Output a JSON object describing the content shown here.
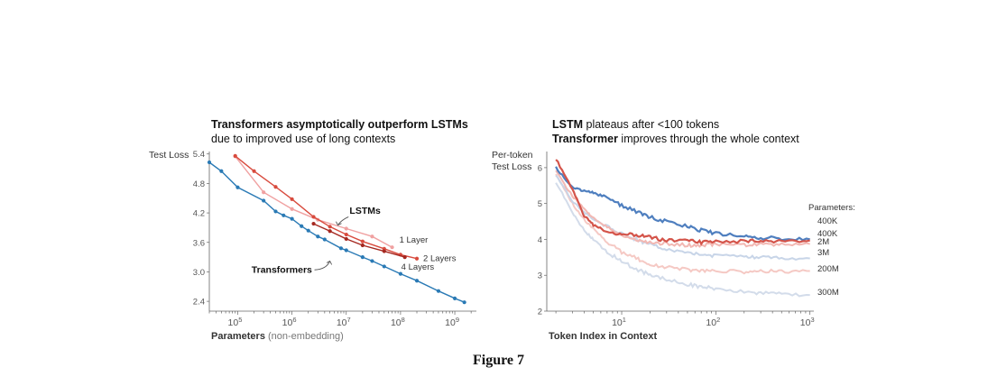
{
  "figure_caption": "Figure 7",
  "chart_data": [
    {
      "type": "line",
      "title_line1": "Transformers asymptotically outperform LSTMs",
      "title_line2": "due to improved use of long contexts",
      "ylabel": "Test Loss",
      "xlabel_bold": "Parameters",
      "xlabel_light": "(non-embedding)",
      "x_scale": "log",
      "xlim": [
        30000,
        2500000000
      ],
      "ylim": [
        2.2,
        5.45
      ],
      "yticks": [
        2.4,
        3.0,
        3.6,
        4.2,
        4.8,
        5.4
      ],
      "ytick_labels": [
        "2.4",
        "3.0",
        "3.6",
        "4.2",
        "4.8",
        "5.4"
      ],
      "xticks": [
        100000,
        1000000,
        10000000,
        100000000,
        1000000000
      ],
      "xtick_labels": [
        "5",
        "6",
        "7",
        "8",
        "9"
      ],
      "xtick_base": "10",
      "annotations": {
        "lstms": "LSTMs",
        "transformers": "Transformers"
      },
      "series": [
        {
          "name": "Transformers",
          "color": "#2a7ab5",
          "label_pos": "none",
          "x": [
            30000,
            50000,
            100000,
            300000,
            500000,
            700000,
            1000000,
            1500000,
            2000000,
            3000000,
            4000000,
            8000000,
            10000000,
            20000000,
            30000000,
            50000000,
            100000000,
            200000000,
            500000000,
            1000000000,
            1500000000
          ],
          "y": [
            5.23,
            5.05,
            4.72,
            4.45,
            4.23,
            4.15,
            4.08,
            3.93,
            3.84,
            3.72,
            3.66,
            3.48,
            3.44,
            3.3,
            3.22,
            3.11,
            2.96,
            2.82,
            2.61,
            2.46,
            2.38
          ]
        },
        {
          "name": "1 Layer",
          "color": "#f0a1a1",
          "label_pos": "end",
          "x": [
            90000,
            300000,
            1000000,
            3000000,
            10000000,
            30000000,
            70000000
          ],
          "y": [
            5.35,
            4.62,
            4.28,
            4.06,
            3.88,
            3.72,
            3.5
          ]
        },
        {
          "name": "2 Layers",
          "color": "#d84b3e",
          "label_pos": "end",
          "x": [
            90000,
            200000,
            500000,
            1000000,
            2500000,
            5000000,
            10000000,
            20000000,
            50000000,
            100000000,
            200000000
          ],
          "y": [
            5.36,
            5.05,
            4.73,
            4.48,
            4.12,
            3.92,
            3.76,
            3.62,
            3.47,
            3.35,
            3.27
          ]
        },
        {
          "name": "4 Layers",
          "color": "#a52820",
          "label_pos": "end",
          "x": [
            2500000,
            5000000,
            10000000,
            20000000,
            50000000,
            120000000
          ],
          "y": [
            3.98,
            3.83,
            3.67,
            3.54,
            3.42,
            3.3
          ]
        }
      ]
    },
    {
      "type": "line",
      "title_line1_bold": "LSTM",
      "title_line1_rest": " plateaus after <100 tokens",
      "title_line2_bold": "Transformer",
      "title_line2_rest": " improves through the whole context",
      "ylabel_line1": "Per-token",
      "ylabel_line2": "Test Loss",
      "xlabel": "Token Index in Context",
      "x_scale": "log",
      "xlim": [
        1.6,
        1100
      ],
      "ylim": [
        2,
        6.45
      ],
      "yticks": [
        2,
        3,
        4,
        5,
        6
      ],
      "ytick_labels": [
        "2",
        "3",
        "4",
        "5",
        "6"
      ],
      "xticks": [
        10,
        100,
        1000
      ],
      "xtick_labels": [
        "1",
        "2",
        "3"
      ],
      "xtick_base": "10",
      "legend_title": "Parameters:",
      "series": [
        {
          "name": "400K",
          "kind": "LSTM",
          "color": "#d4544a",
          "opacity": 1.0,
          "label_loss": 4.97,
          "x": [
            2,
            3,
            4,
            5,
            7,
            10,
            15,
            20,
            30,
            50,
            70,
            100,
            200,
            300,
            500,
            1000
          ],
          "y": [
            6.25,
            5.4,
            4.65,
            4.4,
            4.22,
            4.15,
            4.12,
            4.05,
            3.98,
            3.96,
            3.92,
            3.95,
            3.94,
            3.96,
            3.95,
            3.97
          ]
        },
        {
          "name": "400K",
          "kind": "Transformer",
          "color": "#4f7fbf",
          "opacity": 1.0,
          "label_loss": 5.1,
          "x": [
            2,
            3,
            4,
            5,
            7,
            10,
            15,
            20,
            30,
            50,
            70,
            100,
            200,
            300,
            500,
            1000
          ],
          "y": [
            6.0,
            5.45,
            5.35,
            5.3,
            5.15,
            4.95,
            4.75,
            4.62,
            4.5,
            4.35,
            4.25,
            4.16,
            4.1,
            4.05,
            4.02,
            4.0
          ]
        },
        {
          "name": "2M",
          "kind": "LSTM",
          "color": "#f2b8b3",
          "opacity": 1.0,
          "label_loss": 5.27,
          "x": [
            2,
            3,
            4,
            5,
            7,
            10,
            15,
            20,
            30,
            50,
            70,
            100,
            200,
            300,
            500,
            1000
          ],
          "y": [
            5.9,
            5.2,
            4.85,
            4.6,
            4.32,
            4.1,
            3.98,
            3.92,
            3.88,
            3.84,
            3.84,
            3.86,
            3.85,
            3.86,
            3.85,
            3.87
          ]
        },
        {
          "name": "3M",
          "kind": "Transformer",
          "color": "#c8d5e8",
          "opacity": 1.0,
          "label_loss": 5.5,
          "x": [
            2,
            3,
            4,
            5,
            7,
            10,
            15,
            20,
            30,
            50,
            70,
            100,
            200,
            300,
            500,
            1000
          ],
          "y": [
            5.8,
            5.05,
            4.75,
            4.55,
            4.35,
            4.15,
            3.98,
            3.85,
            3.72,
            3.62,
            3.58,
            3.55,
            3.52,
            3.5,
            3.48,
            3.47
          ]
        },
        {
          "name": "200M",
          "kind": "LSTM",
          "color": "#f5c9c4",
          "opacity": 1.0,
          "label_loss": 6.07,
          "x": [
            2,
            3,
            4,
            5,
            7,
            10,
            15,
            20,
            30,
            50,
            70,
            100,
            200,
            300,
            500,
            1000
          ],
          "y": [
            5.8,
            5.0,
            4.55,
            4.3,
            3.92,
            3.65,
            3.45,
            3.32,
            3.22,
            3.15,
            3.12,
            3.12,
            3.1,
            3.12,
            3.11,
            3.12
          ]
        },
        {
          "name": "300M",
          "kind": "Transformer",
          "color": "#d3dcea",
          "opacity": 1.0,
          "label_loss": 6.7,
          "x": [
            2,
            3,
            4,
            5,
            7,
            10,
            15,
            20,
            30,
            50,
            70,
            100,
            200,
            300,
            500,
            1000
          ],
          "y": [
            5.6,
            4.75,
            4.25,
            4.0,
            3.65,
            3.38,
            3.15,
            3.0,
            2.88,
            2.75,
            2.68,
            2.62,
            2.54,
            2.5,
            2.47,
            2.45
          ]
        }
      ]
    }
  ]
}
